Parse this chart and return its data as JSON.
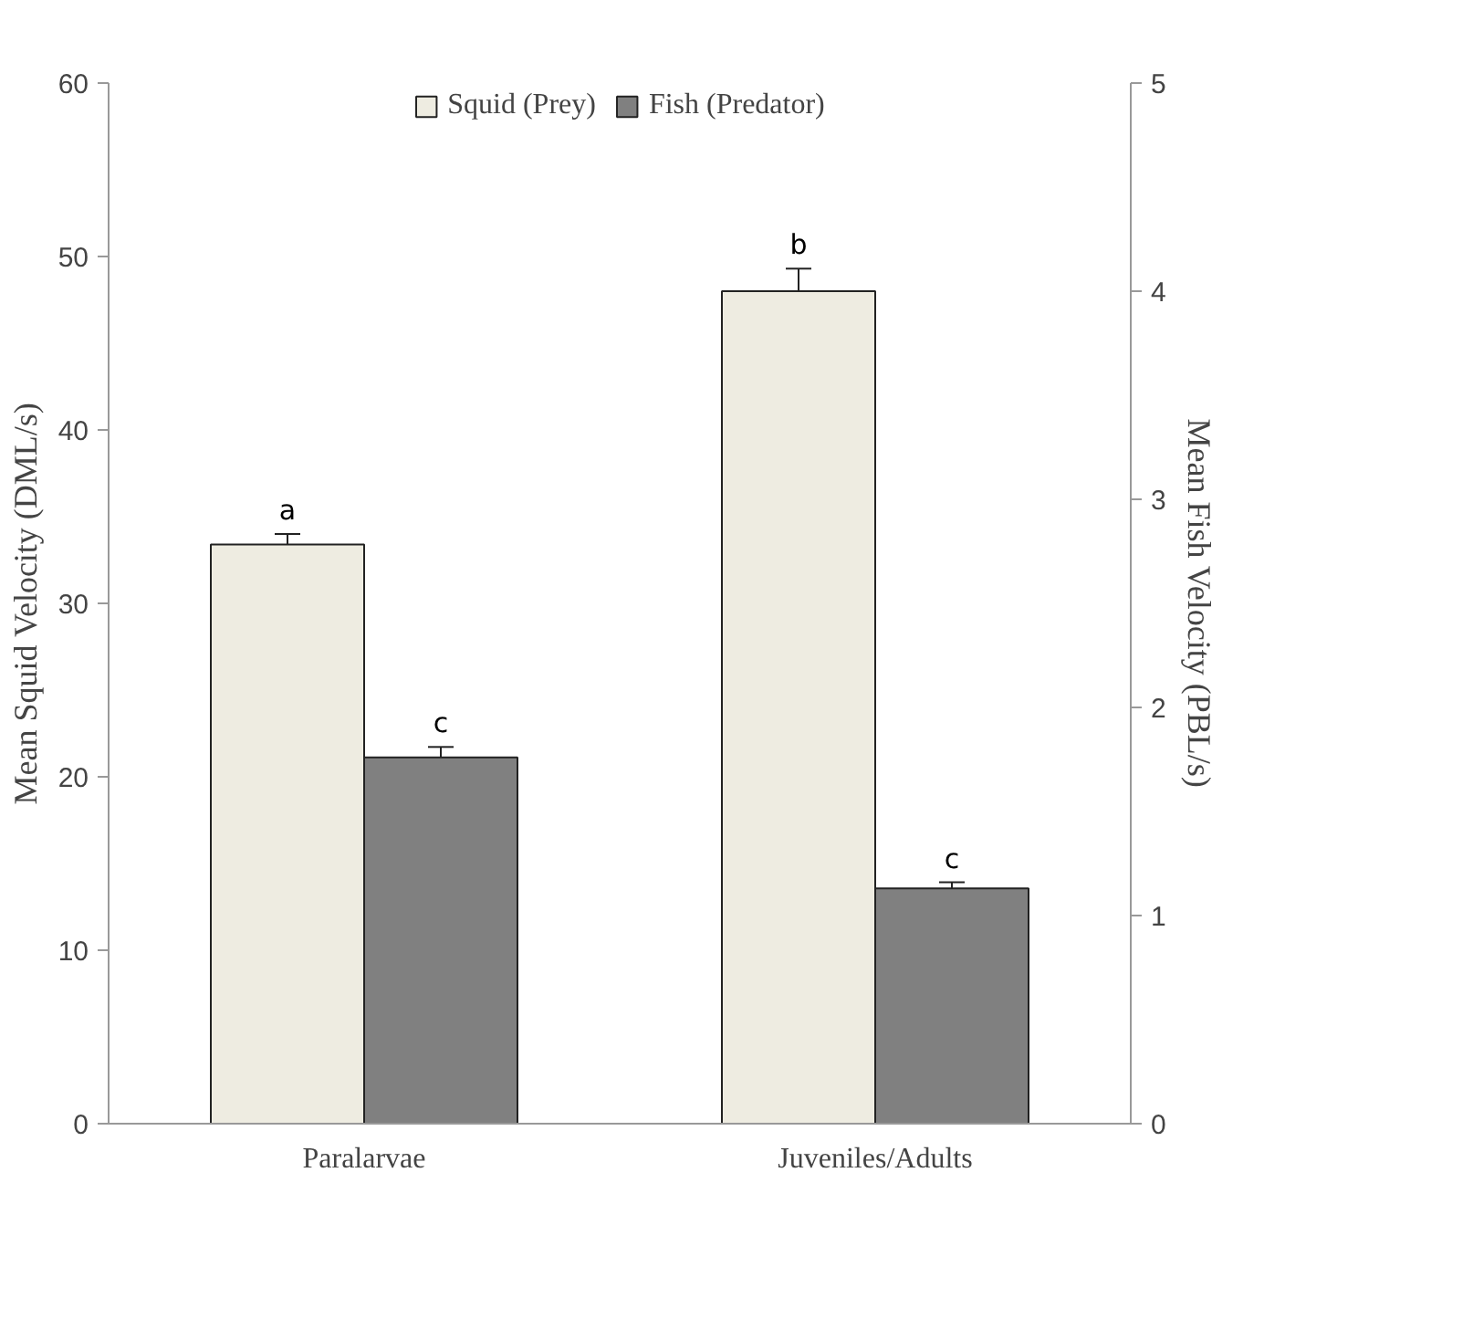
{
  "chart_data": {
    "type": "bar",
    "categories": [
      "Paralarvae",
      "Juveniles/Adults"
    ],
    "ylabel": "Mean Squid Velocity (DML/s)",
    "y2label": "Mean Fish Velocity (PBL/s)",
    "series": [
      {
        "name": "Squid (Prey)",
        "color": "#eeece1",
        "values": [
          33.4,
          48.0
        ],
        "errors": [
          0.6,
          1.3
        ]
      },
      {
        "name": "Fish (Predator)",
        "color": "#808080",
        "values": [
          1.76,
          1.13
        ],
        "errors": [
          0.05,
          0.03
        ],
        "axis": "y2"
      }
    ],
    "ylim": [
      0,
      60
    ],
    "yticks": [
      0,
      10,
      20,
      30,
      40,
      50,
      60
    ],
    "y2lim": [
      0,
      5
    ],
    "y2ticks": [
      0,
      1,
      2,
      3,
      4,
      5
    ],
    "annotations": [
      "a",
      "c",
      "b",
      "c"
    ],
    "legend": "top",
    "grid": false
  }
}
